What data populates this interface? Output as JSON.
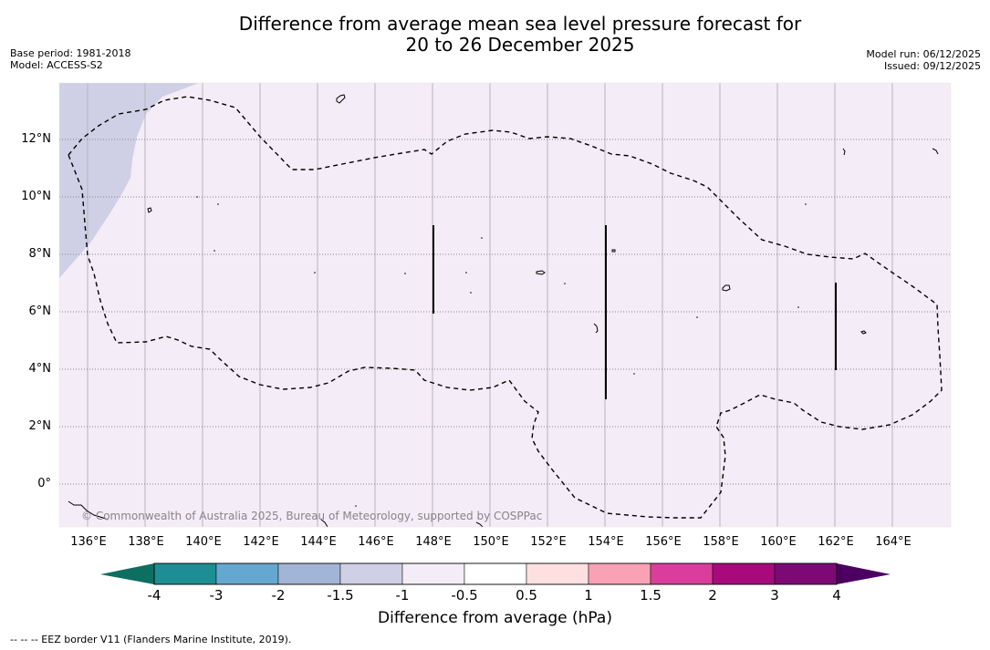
{
  "title": {
    "line1": "Difference from average mean sea level pressure forecast for",
    "line2": "20 to 26 December 2025"
  },
  "meta": {
    "base_period": "Base period: 1981-2018",
    "model": "Model: ACCESS-S2",
    "model_run": "Model run: 06/12/2025",
    "issued": "Issued: 09/12/2025"
  },
  "map": {
    "latitude_labels": [
      "12°N",
      "10°N",
      "8°N",
      "6°N",
      "4°N",
      "2°N",
      "0°"
    ],
    "longitude_labels": [
      "136°E",
      "138°E",
      "140°E",
      "142°E",
      "144°E",
      "146°E",
      "148°E",
      "150°E",
      "152°E",
      "154°E",
      "156°E",
      "158°E",
      "160°E",
      "162°E",
      "164°E"
    ],
    "copyright": "© Commonwealth of Australia 2025, Bureau of Meteorology, supported by COSPPac",
    "background_class": "-1 to -0.5",
    "anomaly_region_class": "-1.5 to -1"
  },
  "colorbar": {
    "title": "Difference from average (hPa)",
    "tick_labels": [
      "-4",
      "-3",
      "-2",
      "-1.5",
      "-1",
      "-0.5",
      "0.5",
      "1",
      "1.5",
      "2",
      "3",
      "4"
    ],
    "colors": [
      "#1d8e93",
      "#64a8d2",
      "#a3b5d6",
      "#cfd0e6",
      "#f4ecf6",
      "#ffffff",
      "#fde0df",
      "#f9a1b5",
      "#db3d9c",
      "#a80a7d",
      "#7d0974"
    ],
    "under_color": "#0d6e62",
    "over_color": "#4b0061"
  },
  "footer": "--  --  -- EEZ border V11 (Flanders Marine Institute, 2019)."
}
